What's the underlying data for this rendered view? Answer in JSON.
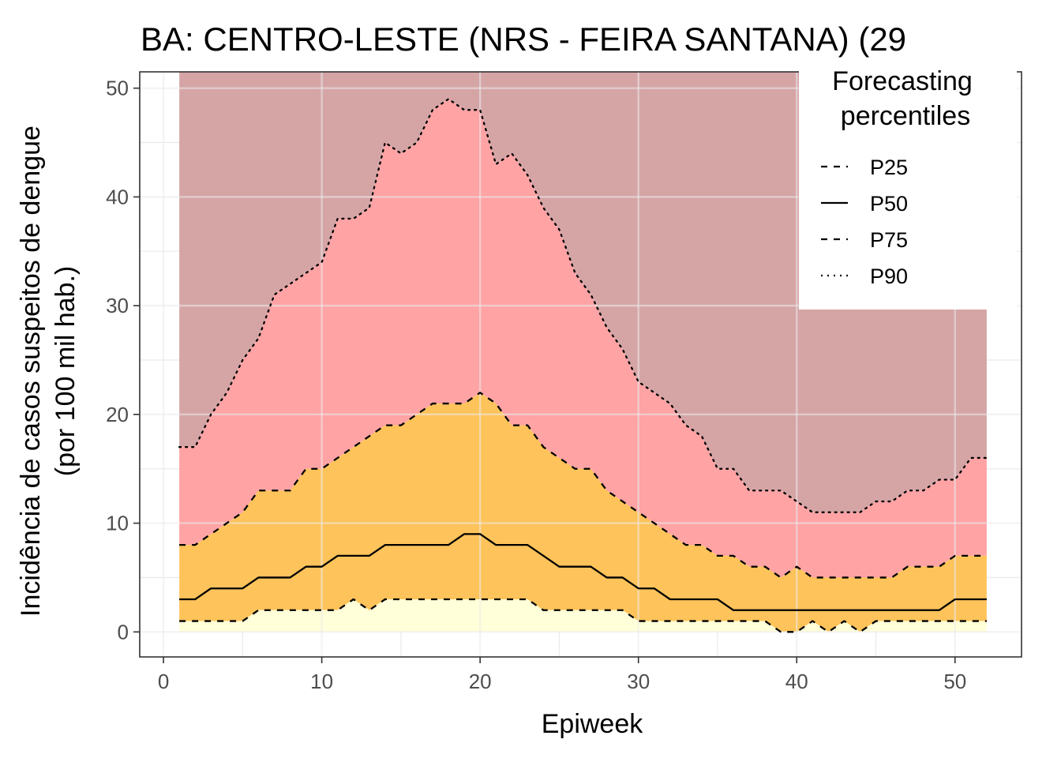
{
  "chart_data": {
    "type": "area",
    "title": "BA: CENTRO-LESTE (NRS - FEIRA SANTANA) (29",
    "xlabel": "Epiweek",
    "ylabel_line1": "Incidência de casos suspeitos de dengue",
    "ylabel_line2": "(por 100 mil hab.)",
    "xlim": [
      -1.5,
      54.2
    ],
    "ylim": [
      -2.3,
      51.5
    ],
    "x_ticks": [
      0,
      10,
      20,
      30,
      40,
      50
    ],
    "y_ticks": [
      0,
      10,
      20,
      30,
      40,
      50
    ],
    "grid": true,
    "legend": {
      "title_line1": "Forecasting",
      "title_line2": "percentiles",
      "placement": "top-right",
      "entries": [
        {
          "label": "P25",
          "linetype": "dashed"
        },
        {
          "label": "P50",
          "linetype": "solid"
        },
        {
          "label": "P75",
          "linetype": "dashed"
        },
        {
          "label": "P90",
          "linetype": "dotted"
        }
      ]
    },
    "colors": {
      "band_lowest": "#ffffd9",
      "band_p25_p75": "#fec35a",
      "band_p75_p90": "#ffa3a5",
      "band_above_p90": "#d5a5a6",
      "line": "#000000",
      "grid": "#ebebeb",
      "panel_border": "#333333"
    },
    "x": [
      1,
      2,
      3,
      4,
      5,
      6,
      7,
      8,
      9,
      10,
      11,
      12,
      13,
      14,
      15,
      16,
      17,
      18,
      19,
      20,
      21,
      22,
      23,
      24,
      25,
      26,
      27,
      28,
      29,
      30,
      31,
      32,
      33,
      34,
      35,
      36,
      37,
      38,
      39,
      40,
      41,
      42,
      43,
      44,
      45,
      46,
      47,
      48,
      49,
      50,
      51,
      52
    ],
    "series": [
      {
        "name": "P25",
        "values": [
          1,
          1,
          1,
          1,
          1,
          2,
          2,
          2,
          2,
          2,
          2,
          3,
          2,
          3,
          3,
          3,
          3,
          3,
          3,
          3,
          3,
          3,
          3,
          2,
          2,
          2,
          2,
          2,
          2,
          1,
          1,
          1,
          1,
          1,
          1,
          1,
          1,
          1,
          0,
          0,
          1,
          0,
          1,
          0,
          1,
          1,
          1,
          1,
          1,
          1,
          1,
          1
        ]
      },
      {
        "name": "P50",
        "values": [
          3,
          3,
          4,
          4,
          4,
          5,
          5,
          5,
          6,
          6,
          7,
          7,
          7,
          8,
          8,
          8,
          8,
          8,
          9,
          9,
          8,
          8,
          8,
          7,
          6,
          6,
          6,
          5,
          5,
          4,
          4,
          3,
          3,
          3,
          3,
          2,
          2,
          2,
          2,
          2,
          2,
          2,
          2,
          2,
          2,
          2,
          2,
          2,
          2,
          3,
          3,
          3
        ]
      },
      {
        "name": "P75",
        "values": [
          8,
          8,
          9,
          10,
          11,
          13,
          13,
          13,
          15,
          15,
          16,
          17,
          18,
          19,
          19,
          20,
          21,
          21,
          21,
          22,
          21,
          19,
          19,
          17,
          16,
          15,
          15,
          13,
          12,
          11,
          10,
          9,
          8,
          8,
          7,
          7,
          6,
          6,
          5,
          6,
          5,
          5,
          5,
          5,
          5,
          5,
          6,
          6,
          6,
          7,
          7,
          7
        ]
      },
      {
        "name": "P90",
        "values": [
          17,
          17,
          20,
          22,
          25,
          27,
          31,
          32,
          33,
          34,
          38,
          38,
          39,
          45,
          44,
          45,
          48,
          49,
          48,
          48,
          43,
          44,
          42,
          39,
          37,
          33,
          31,
          28,
          26,
          23,
          22,
          21,
          19,
          18,
          15,
          15,
          13,
          13,
          13,
          12,
          11,
          11,
          11,
          11,
          12,
          12,
          13,
          13,
          14,
          14,
          16,
          16
        ]
      }
    ]
  }
}
